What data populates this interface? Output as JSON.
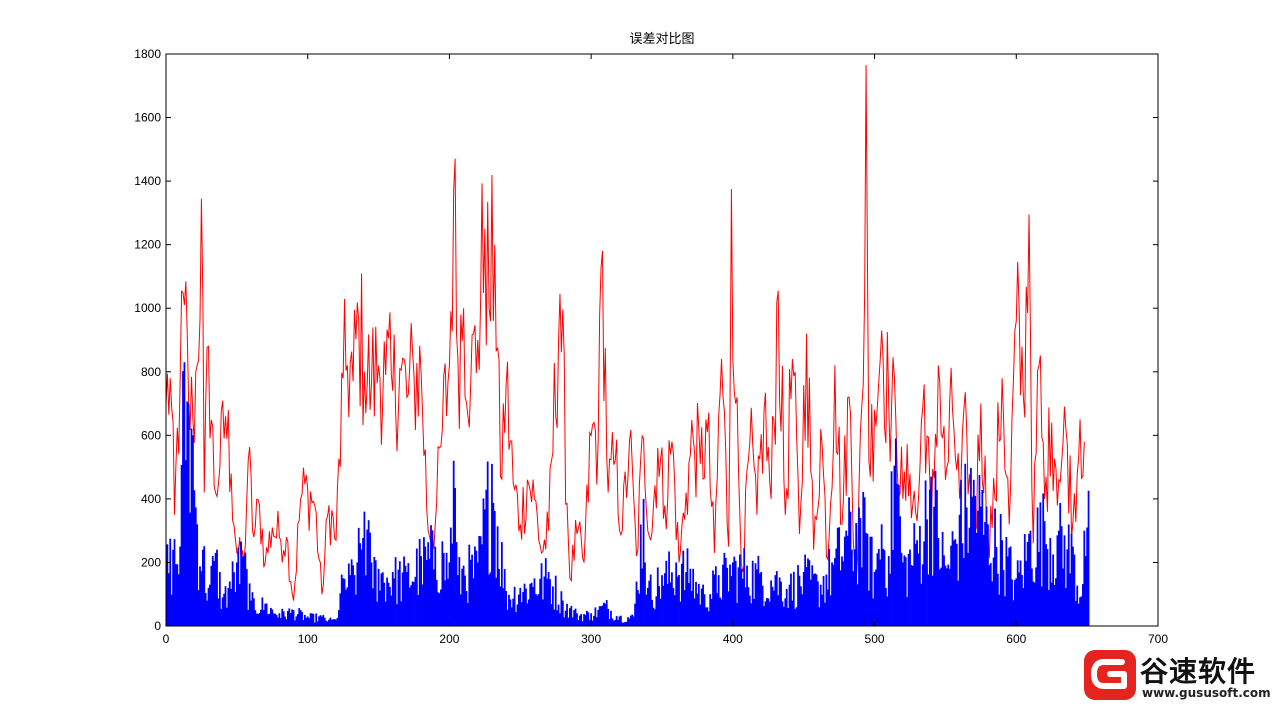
{
  "chart_data": {
    "type": "bar",
    "title": "误差对比图",
    "xlabel": "",
    "ylabel": "",
    "xlim": [
      0,
      700
    ],
    "ylim": [
      0,
      1800
    ],
    "x_ticks": [
      0,
      100,
      200,
      300,
      400,
      500,
      600,
      700
    ],
    "y_ticks": [
      0,
      200,
      400,
      600,
      800,
      1000,
      1200,
      1400,
      1600,
      1800
    ],
    "n_points": 652,
    "grid": false,
    "legend": "none",
    "series": [
      {
        "type": "line",
        "color": "#ff0000",
        "keypoints_x": [
          0,
          3,
          6,
          10,
          13,
          16,
          19,
          22,
          25,
          27,
          30,
          34,
          38,
          42,
          46,
          50,
          55,
          58,
          62,
          66,
          70,
          75,
          80,
          85,
          90,
          95,
          100,
          105,
          110,
          115,
          120,
          125,
          128,
          132,
          136,
          140,
          145,
          150,
          155,
          160,
          165,
          170,
          175,
          180,
          185,
          190,
          195,
          200,
          203,
          206,
          210,
          215,
          220,
          225,
          228,
          232,
          236,
          240,
          245,
          250,
          255,
          260,
          265,
          270,
          278,
          285,
          290,
          295,
          300,
          305,
          308,
          312,
          317,
          322,
          327,
          332,
          337,
          342,
          347,
          352,
          357,
          362,
          367,
          372,
          377,
          382,
          387,
          392,
          397,
          399,
          402,
          407,
          412,
          417,
          422,
          427,
          432,
          437,
          442,
          447,
          452,
          457,
          462,
          467,
          472,
          477,
          482,
          487,
          492,
          494,
          496,
          500,
          505,
          510,
          515,
          520,
          525,
          530,
          535,
          540,
          545,
          550,
          555,
          560,
          565,
          570,
          575,
          580,
          585,
          590,
          595,
          600,
          605,
          609,
          612,
          616,
          620,
          625,
          630,
          635,
          640,
          645,
          648,
          652
        ],
        "keypoints_y": [
          700,
          780,
          350,
          780,
          1010,
          700,
          650,
          820,
          1345,
          420,
          880,
          440,
          500,
          660,
          480,
          230,
          200,
          520,
          280,
          380,
          200,
          310,
          280,
          280,
          80,
          400,
          430,
          380,
          100,
          380,
          270,
          780,
          820,
          770,
          960,
          800,
          760,
          820,
          790,
          740,
          810,
          720,
          790,
          800,
          300,
          320,
          620,
          820,
          1370,
          840,
          1000,
          760,
          900,
          1250,
          1000,
          1200,
          470,
          760,
          450,
          320,
          460,
          400,
          230,
          300,
          1045,
          150,
          290,
          200,
          600,
          590,
          1180,
          420,
          520,
          300,
          580,
          220,
          590,
          270,
          560,
          380,
          580,
          200,
          420,
          590,
          510,
          610,
          230,
          840,
          250,
          1375,
          700,
          170,
          580,
          350,
          680,
          400,
          1055,
          350,
          840,
          290,
          920,
          240,
          620,
          210,
          820,
          320,
          720,
          140,
          760,
          1765,
          520,
          680,
          930,
          700,
          650,
          400,
          480,
          330,
          760,
          300,
          820,
          460,
          680,
          400,
          620,
          200,
          700,
          280,
          400,
          780,
          320,
          960,
          720,
          1295,
          260,
          820,
          400,
          640,
          460,
          620,
          330,
          650,
          580
        ],
        "range": [
          40,
          1765
        ]
      },
      {
        "type": "bar",
        "color": "#0000ff",
        "keypoints_x": [
          0,
          5,
          10,
          13,
          16,
          19,
          22,
          26,
          30,
          35,
          40,
          45,
          50,
          55,
          60,
          70,
          80,
          90,
          100,
          110,
          115,
          120,
          125,
          130,
          135,
          140,
          145,
          150,
          160,
          170,
          180,
          190,
          196,
          200,
          203,
          206,
          210,
          220,
          230,
          240,
          250,
          260,
          270,
          280,
          290,
          300,
          310,
          320,
          330,
          337,
          340,
          350,
          360,
          370,
          380,
          390,
          400,
          410,
          420,
          430,
          440,
          450,
          460,
          470,
          480,
          490,
          495,
          500,
          505,
          510,
          515,
          520,
          530,
          540,
          550,
          560,
          570,
          580,
          590,
          600,
          610,
          620,
          630,
          640,
          645,
          648,
          652
        ],
        "keypoints_y": [
          200,
          240,
          250,
          830,
          700,
          600,
          320,
          240,
          120,
          230,
          90,
          140,
          200,
          220,
          80,
          70,
          40,
          50,
          30,
          30,
          20,
          20,
          150,
          160,
          200,
          360,
          200,
          180,
          170,
          170,
          220,
          250,
          230,
          200,
          520,
          160,
          190,
          200,
          510,
          110,
          120,
          150,
          170,
          80,
          40,
          40,
          70,
          30,
          30,
          400,
          120,
          160,
          200,
          180,
          100,
          160,
          200,
          190,
          170,
          160,
          130,
          170,
          140,
          200,
          300,
          340,
          290,
          170,
          320,
          220,
          590,
          200,
          270,
          470,
          190,
          350,
          460,
          320,
          270,
          150,
          300,
          330,
          300,
          250,
          90,
          300,
          340
        ],
        "range": [
          0,
          830
        ]
      }
    ]
  },
  "watermark": {
    "brand": "谷速软件",
    "url": "www.gususoft.com",
    "logo_color": "#e5241f"
  }
}
